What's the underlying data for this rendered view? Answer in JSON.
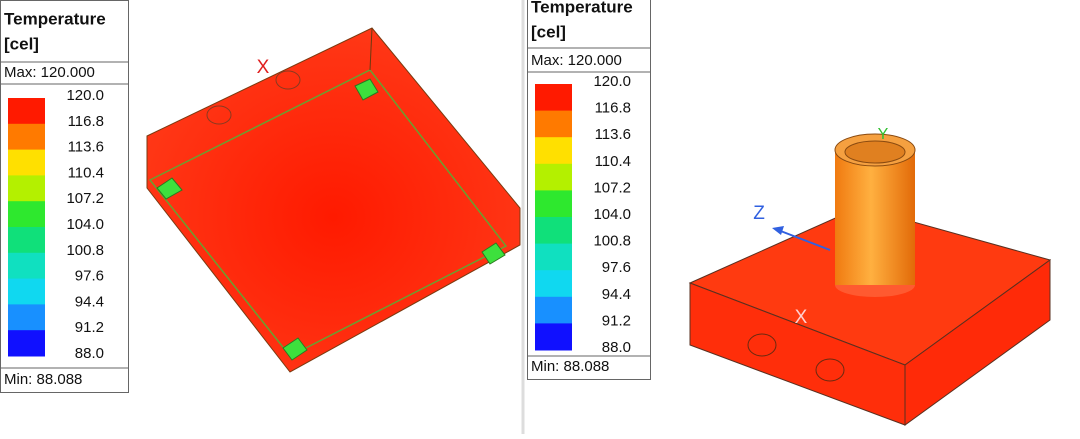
{
  "panels": [
    {
      "legend": {
        "title": "Temperature",
        "unit": "[cel]",
        "max": "Max: 120.000",
        "min": "Min:  88.088",
        "levels": [
          "120.0",
          "116.8",
          "113.6",
          "110.4",
          "107.2",
          "104.0",
          "100.8",
          "97.6",
          "94.4",
          "91.2",
          "88.0"
        ]
      },
      "axes": [
        "X"
      ]
    },
    {
      "legend": {
        "title": "Temperature",
        "unit": "[cel]",
        "max": "Max: 120.000",
        "min": "Min:  88.088",
        "levels": [
          "120.0",
          "116.8",
          "113.6",
          "110.4",
          "107.2",
          "104.0",
          "100.8",
          "97.6",
          "94.4",
          "91.2",
          "88.0"
        ]
      },
      "axes": [
        "Z",
        "Y",
        "X"
      ]
    }
  ]
}
